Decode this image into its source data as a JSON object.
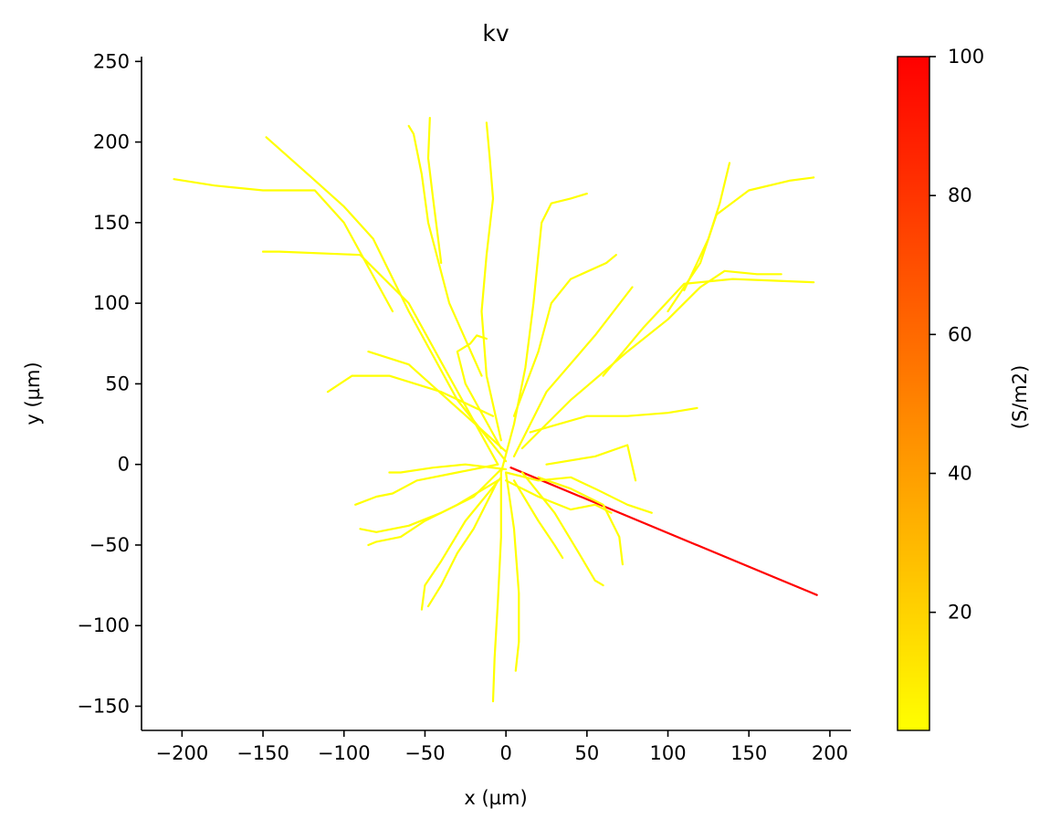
{
  "chart_data": {
    "type": "line",
    "title": "kv",
    "xlabel": "x (µm)",
    "ylabel": "y (µm)",
    "xlim": [
      -225,
      213
    ],
    "ylim": [
      -165,
      253
    ],
    "xticks": [
      {
        "value": -200,
        "label": "−200"
      },
      {
        "value": -150,
        "label": "−150"
      },
      {
        "value": -100,
        "label": "−100"
      },
      {
        "value": -50,
        "label": "−50"
      },
      {
        "value": 0,
        "label": "0"
      },
      {
        "value": 50,
        "label": "50"
      },
      {
        "value": 100,
        "label": "100"
      },
      {
        "value": 150,
        "label": "150"
      },
      {
        "value": 200,
        "label": "200"
      }
    ],
    "yticks": [
      {
        "value": -150,
        "label": "−150"
      },
      {
        "value": -100,
        "label": "−100"
      },
      {
        "value": -50,
        "label": "−50"
      },
      {
        "value": 0,
        "label": "0"
      },
      {
        "value": 50,
        "label": "50"
      },
      {
        "value": 100,
        "label": "100"
      },
      {
        "value": 150,
        "label": "150"
      },
      {
        "value": 200,
        "label": "200"
      },
      {
        "value": 250,
        "label": "250"
      }
    ],
    "grid": false,
    "colormap": {
      "name": "autumn_r",
      "low_color": "#ffff00",
      "high_color": "#ff0000"
    },
    "colorbar": {
      "label": "(S/m2)",
      "vmin": 3,
      "vmax": 100,
      "ticks": [
        {
          "value": 20,
          "label": "20"
        },
        {
          "value": 40,
          "label": "40"
        },
        {
          "value": 60,
          "label": "60"
        },
        {
          "value": 80,
          "label": "80"
        },
        {
          "value": 100,
          "label": "100"
        }
      ]
    },
    "series": [
      {
        "value": 100,
        "color": "#ff0000",
        "points": [
          [
            3,
            -2
          ],
          [
            192,
            -81
          ]
        ]
      },
      {
        "value": 3,
        "color": "#ffff00",
        "points": [
          [
            -3,
            -5
          ],
          [
            5,
            25
          ],
          [
            12,
            60
          ],
          [
            17,
            100
          ],
          [
            20,
            130
          ],
          [
            22,
            150
          ],
          [
            28,
            162
          ],
          [
            40,
            165
          ],
          [
            50,
            168
          ]
        ]
      },
      {
        "value": 3,
        "color": "#ffff00",
        "points": [
          [
            -3,
            15
          ],
          [
            -12,
            55
          ],
          [
            -15,
            95
          ],
          [
            -12,
            130
          ],
          [
            -8,
            165
          ],
          [
            -10,
            190
          ],
          [
            -12,
            212
          ]
        ]
      },
      {
        "value": 3,
        "color": "#ffff00",
        "points": [
          [
            0,
            2
          ],
          [
            -30,
            40
          ],
          [
            -60,
            95
          ],
          [
            -82,
            140
          ],
          [
            -100,
            160
          ],
          [
            -120,
            178
          ],
          [
            -148,
            203
          ]
        ]
      },
      {
        "value": 3,
        "color": "#ffff00",
        "points": [
          [
            -8,
            30
          ],
          [
            -40,
            45
          ],
          [
            -72,
            55
          ],
          [
            -95,
            55
          ],
          [
            -110,
            45
          ]
        ]
      },
      {
        "value": 3,
        "color": "#ffff00",
        "points": [
          [
            0,
            8
          ],
          [
            -30,
            35
          ],
          [
            -60,
            62
          ],
          [
            -85,
            70
          ]
        ]
      },
      {
        "value": 3,
        "color": "#ffff00",
        "points": [
          [
            -15,
            55
          ],
          [
            -35,
            100
          ],
          [
            -48,
            150
          ],
          [
            -52,
            180
          ],
          [
            -57,
            205
          ],
          [
            -60,
            210
          ]
        ]
      },
      {
        "value": 3,
        "color": "#ffff00",
        "points": [
          [
            -40,
            125
          ],
          [
            -45,
            165
          ],
          [
            -48,
            190
          ],
          [
            -47,
            215
          ]
        ]
      },
      {
        "value": 3,
        "color": "#ffff00",
        "points": [
          [
            -5,
            0
          ],
          [
            -38,
            60
          ],
          [
            -60,
            100
          ],
          [
            -90,
            130
          ],
          [
            -140,
            132
          ],
          [
            -150,
            132
          ]
        ]
      },
      {
        "value": 3,
        "color": "#ffff00",
        "points": [
          [
            -70,
            95
          ],
          [
            -100,
            150
          ],
          [
            -118,
            170
          ],
          [
            -150,
            170
          ],
          [
            -180,
            173
          ],
          [
            -205,
            177
          ]
        ]
      },
      {
        "value": 3,
        "color": "#ffff00",
        "points": [
          [
            -3,
            10
          ],
          [
            -25,
            50
          ],
          [
            -30,
            70
          ],
          [
            -22,
            75
          ],
          [
            -18,
            80
          ],
          [
            -12,
            78
          ]
        ]
      },
      {
        "value": 3,
        "color": "#ffff00",
        "points": [
          [
            5,
            5
          ],
          [
            25,
            45
          ],
          [
            55,
            80
          ],
          [
            78,
            110
          ]
        ]
      },
      {
        "value": 3,
        "color": "#ffff00",
        "points": [
          [
            10,
            10
          ],
          [
            40,
            40
          ],
          [
            75,
            70
          ],
          [
            100,
            90
          ],
          [
            120,
            110
          ],
          [
            135,
            120
          ],
          [
            155,
            118
          ],
          [
            170,
            118
          ]
        ]
      },
      {
        "value": 3,
        "color": "#ffff00",
        "points": [
          [
            60,
            55
          ],
          [
            85,
            85
          ],
          [
            110,
            112
          ],
          [
            140,
            115
          ],
          [
            165,
            114
          ],
          [
            190,
            113
          ]
        ]
      },
      {
        "value": 3,
        "color": "#ffff00",
        "points": [
          [
            100,
            95
          ],
          [
            120,
            125
          ],
          [
            130,
            155
          ],
          [
            150,
            170
          ],
          [
            175,
            176
          ],
          [
            190,
            178
          ]
        ]
      },
      {
        "value": 3,
        "color": "#ffff00",
        "points": [
          [
            110,
            108
          ],
          [
            125,
            140
          ],
          [
            132,
            162
          ],
          [
            138,
            187
          ]
        ]
      },
      {
        "value": 3,
        "color": "#ffff00",
        "points": [
          [
            5,
            30
          ],
          [
            20,
            70
          ],
          [
            28,
            100
          ],
          [
            40,
            115
          ],
          [
            62,
            125
          ],
          [
            68,
            130
          ]
        ]
      },
      {
        "value": 3,
        "color": "#ffff00",
        "points": [
          [
            25,
            0
          ],
          [
            55,
            5
          ],
          [
            75,
            12
          ],
          [
            80,
            -10
          ]
        ]
      },
      {
        "value": 3,
        "color": "#ffff00",
        "points": [
          [
            15,
            20
          ],
          [
            50,
            30
          ],
          [
            75,
            30
          ],
          [
            100,
            32
          ],
          [
            118,
            35
          ]
        ]
      },
      {
        "value": 3,
        "color": "#ffff00",
        "points": [
          [
            0,
            -5
          ],
          [
            20,
            -10
          ],
          [
            40,
            -8
          ],
          [
            55,
            -15
          ],
          [
            75,
            -25
          ],
          [
            90,
            -30
          ]
        ]
      },
      {
        "value": 3,
        "color": "#ffff00",
        "points": [
          [
            20,
            -8
          ],
          [
            40,
            -15
          ],
          [
            60,
            -25
          ],
          [
            70,
            -45
          ],
          [
            72,
            -62
          ]
        ]
      },
      {
        "value": 3,
        "color": "#ffff00",
        "points": [
          [
            5,
            -10
          ],
          [
            20,
            -35
          ],
          [
            30,
            -50
          ],
          [
            35,
            -58
          ]
        ]
      },
      {
        "value": 3,
        "color": "#ffff00",
        "points": [
          [
            0,
            -5
          ],
          [
            5,
            -40
          ],
          [
            8,
            -80
          ],
          [
            8,
            -110
          ],
          [
            6,
            -128
          ]
        ]
      },
      {
        "value": 3,
        "color": "#ffff00",
        "points": [
          [
            -3,
            -5
          ],
          [
            -3,
            -45
          ],
          [
            -5,
            -85
          ],
          [
            -7,
            -120
          ],
          [
            -8,
            -147
          ]
        ]
      },
      {
        "value": 3,
        "color": "#ffff00",
        "points": [
          [
            -3,
            -8
          ],
          [
            -25,
            -35
          ],
          [
            -40,
            -60
          ],
          [
            -50,
            -75
          ],
          [
            -52,
            -90
          ]
        ]
      },
      {
        "value": 3,
        "color": "#ffff00",
        "points": [
          [
            -3,
            -3
          ],
          [
            -20,
            -20
          ],
          [
            -40,
            -30
          ],
          [
            -60,
            -38
          ],
          [
            -80,
            -42
          ],
          [
            -90,
            -40
          ]
        ]
      },
      {
        "value": 3,
        "color": "#ffff00",
        "points": [
          [
            -5,
            0
          ],
          [
            -30,
            -5
          ],
          [
            -55,
            -10
          ],
          [
            -70,
            -18
          ],
          [
            -80,
            -20
          ],
          [
            -93,
            -25
          ]
        ]
      },
      {
        "value": 3,
        "color": "#ffff00",
        "points": [
          [
            -5,
            -10
          ],
          [
            -30,
            -25
          ],
          [
            -50,
            -35
          ],
          [
            -65,
            -45
          ],
          [
            -80,
            -48
          ],
          [
            -85,
            -50
          ]
        ]
      },
      {
        "value": 3,
        "color": "#ffff00",
        "points": [
          [
            0,
            -3
          ],
          [
            -25,
            0
          ],
          [
            -45,
            -2
          ],
          [
            -65,
            -5
          ],
          [
            -72,
            -5
          ]
        ]
      },
      {
        "value": 3,
        "color": "#ffff00",
        "points": [
          [
            -5,
            -10
          ],
          [
            -20,
            -40
          ],
          [
            -30,
            -55
          ],
          [
            -40,
            -75
          ],
          [
            -48,
            -88
          ]
        ]
      },
      {
        "value": 3,
        "color": "#ffff00",
        "points": [
          [
            0,
            -10
          ],
          [
            20,
            -20
          ],
          [
            40,
            -28
          ],
          [
            55,
            -25
          ],
          [
            65,
            -30
          ]
        ]
      },
      {
        "value": 3,
        "color": "#ffff00",
        "points": [
          [
            10,
            -5
          ],
          [
            30,
            -30
          ],
          [
            45,
            -55
          ],
          [
            55,
            -72
          ],
          [
            60,
            -75
          ]
        ]
      }
    ]
  }
}
